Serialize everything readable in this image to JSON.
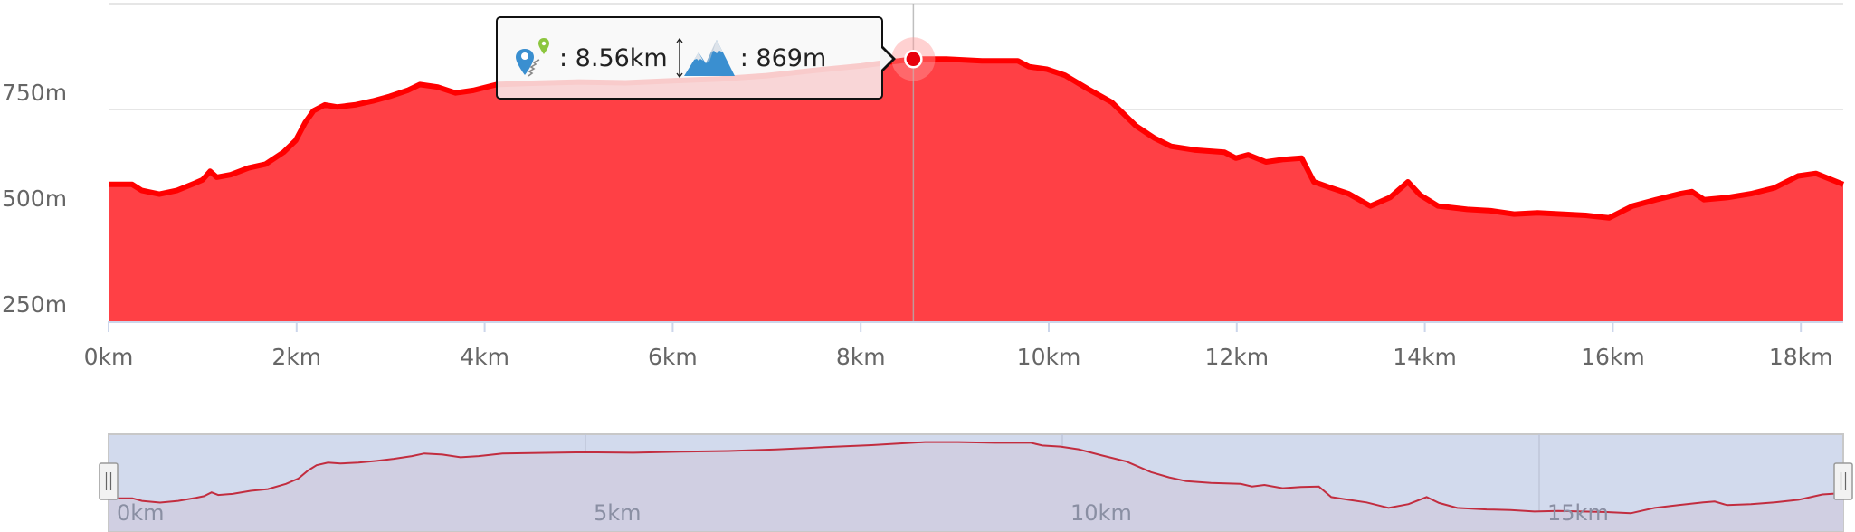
{
  "chart_data": [
    {
      "type": "area",
      "title": "",
      "xlabel": "",
      "ylabel": "",
      "xlim": [
        0,
        18.45
      ],
      "ylim": [
        250,
        1000
      ],
      "x_ticks": [
        0,
        2,
        4,
        6,
        8,
        10,
        12,
        14,
        16,
        18
      ],
      "x_tick_labels": [
        "0km",
        "2km",
        "4km",
        "6km",
        "8km",
        "10km",
        "12km",
        "14km",
        "16km",
        "18km"
      ],
      "y_ticks": [
        250,
        500,
        750,
        1000
      ],
      "y_tick_labels": [
        "250m",
        "500m",
        "750m",
        ""
      ],
      "grid": true,
      "colors": {
        "fill": "#ff4045",
        "line": "#ff0000",
        "marker": "#e8000b"
      },
      "series": [
        {
          "x": [
            0,
            0.25,
            0.35,
            0.54,
            0.73,
            0.92,
            1.0,
            1.08,
            1.15,
            1.3,
            1.49,
            1.67,
            1.86,
            1.99,
            2.09,
            2.18,
            2.3,
            2.43,
            2.62,
            2.81,
            2.99,
            3.18,
            3.31,
            3.5,
            3.69,
            3.88,
            4.13,
            4.5,
            5.0,
            5.5,
            6.0,
            6.5,
            7.0,
            7.5,
            8.0,
            8.3,
            8.56,
            8.91,
            9.29,
            9.67,
            9.79,
            9.98,
            10.17,
            10.42,
            10.67,
            10.93,
            11.12,
            11.3,
            11.56,
            11.87,
            11.99,
            12.12,
            12.31,
            12.5,
            12.69,
            12.82,
            13.0,
            13.19,
            13.42,
            13.63,
            13.82,
            13.95,
            14.14,
            14.45,
            14.7,
            14.95,
            15.2,
            15.71,
            15.96,
            16.21,
            16.46,
            16.72,
            16.84,
            16.97,
            17.22,
            17.47,
            17.72,
            17.97,
            18.16,
            18.45
          ],
          "y": [
            573,
            573,
            559,
            550,
            559,
            576,
            584,
            604,
            590,
            596,
            612,
            621,
            649,
            677,
            719,
            747,
            761,
            756,
            761,
            770,
            781,
            795,
            809,
            803,
            789,
            795,
            809,
            812,
            815,
            813,
            818,
            822,
            830,
            842,
            853,
            862,
            869,
            869,
            865,
            865,
            851,
            845,
            831,
            798,
            767,
            711,
            683,
            663,
            654,
            649,
            635,
            643,
            626,
            632,
            635,
            579,
            565,
            551,
            522,
            542,
            579,
            548,
            522,
            514,
            511,
            503,
            506,
            500,
            494,
            522,
            537,
            551,
            556,
            537,
            542,
            551,
            565,
            593,
            599,
            573
          ]
        }
      ],
      "tooltip": {
        "distance_icon": "map-pins-icon",
        "distance_text": ": 8.56km",
        "elevation_icon": "mountain-icon",
        "elevation_text": ": 869m",
        "x": 8.56,
        "y": 869
      }
    },
    {
      "type": "line",
      "role": "navigator",
      "xlim": [
        0,
        18.2
      ],
      "ylim": [
        400,
        910
      ],
      "x_ticks": [
        0,
        5,
        10,
        15
      ],
      "x_tick_labels": [
        "0km",
        "5km",
        "10km",
        "15km"
      ],
      "selected_range": [
        0,
        18.45
      ],
      "colors": {
        "background": "#d2daed",
        "mask": "#d0cfe2",
        "line": "#c22d3f"
      }
    }
  ]
}
